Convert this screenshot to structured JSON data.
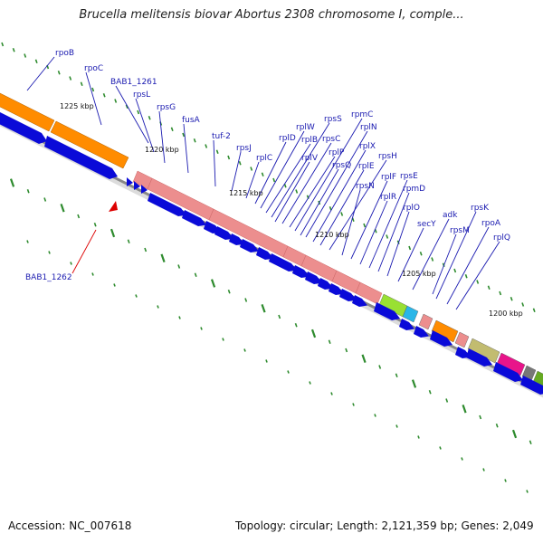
{
  "title": "Brucella melitensis biovar Abortus 2308 chromosome I, comple...",
  "footer": {
    "accession": "Accession: NC_007618",
    "summary": "Topology: circular; Length: 2,121,359 bp; Genes: 2,049"
  },
  "kbp_labels": [
    "1225 kbp",
    "1220 kbp",
    "1215 kbp",
    "1210 kbp",
    "1205 kbp",
    "1200 kbp"
  ],
  "gene_labels": [
    "rpoB",
    "rpoC",
    "BAB1_1261",
    "rpsL",
    "rpsG",
    "fusA",
    "tuf-2",
    "rpsJ",
    "rplC",
    "rplD",
    "rplW",
    "rplB",
    "rpsS",
    "rplV",
    "rpsC",
    "rplP",
    "rpmC",
    "rpsQ",
    "rplN",
    "rplX",
    "rplE",
    "rpsH",
    "rpsN",
    "rplF",
    "rplR",
    "rpsE",
    "rpmD",
    "rplO",
    "secY",
    "adk",
    "rpsM",
    "rpsK",
    "rpoA",
    "rplQ"
  ],
  "highlight": {
    "label": "BAB1_1262",
    "color": "#dd0000"
  },
  "colors": {
    "label_text": "#1a1ab0",
    "cds_arrow": "#0a0ad8",
    "rpo_block": "#ff8c00",
    "ribosomal_block": "#ec8e8e",
    "secY_block": "#99e033",
    "adk_block": "#29b6e8",
    "rpoA_block": "#ff8c00",
    "rplQ_block": "#c2bc70",
    "next_block_1": "#e8148a",
    "next_block_2": "#777777",
    "next_block_3": "#66aa22",
    "tick": "#2e8b2e",
    "backbone": "#888888"
  }
}
